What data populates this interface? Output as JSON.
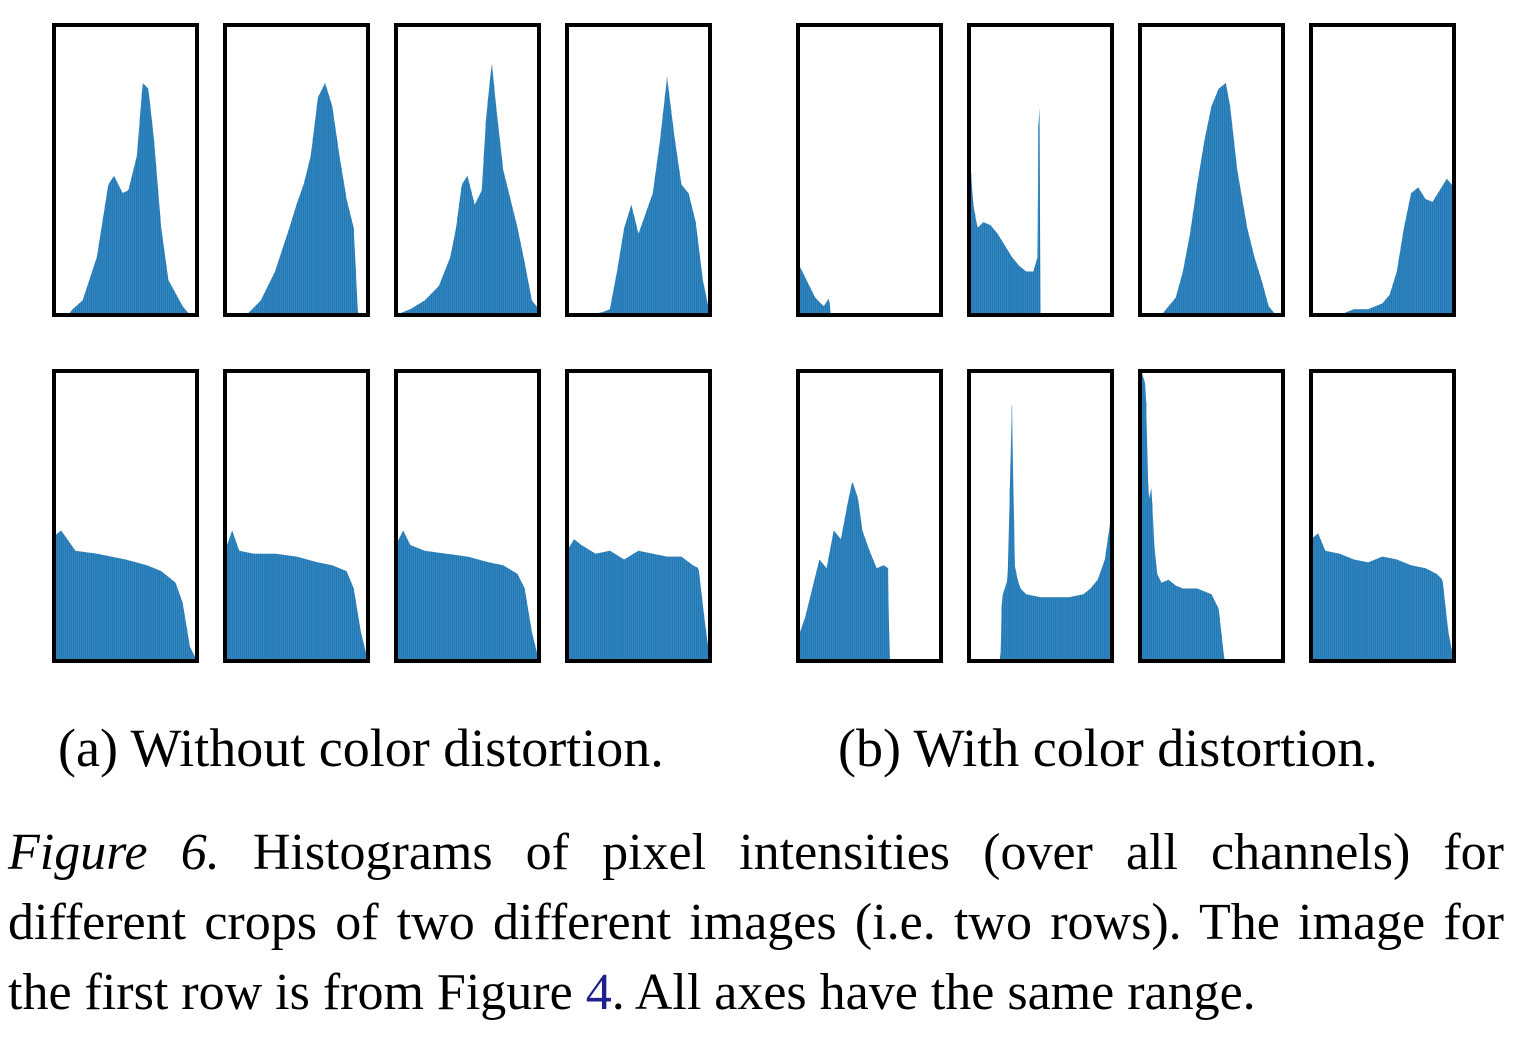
{
  "figure": {
    "label": "Figure 6.",
    "caption_part1": "Histograms of pixel intensities (over all channels) for different crops of two different images (i.e. two rows). The image for the first row is from Figure ",
    "caption_ref": "4",
    "caption_part2": ". All axes have the same range."
  },
  "subcaptions": {
    "a": "(a) Without color distortion.",
    "b": "(b) With color distortion."
  },
  "colors": {
    "bar": "#1f77b4",
    "frame": "#000000"
  },
  "chart_data": [
    {
      "type": "area",
      "panel": "a",
      "shared_axes": true,
      "x_range": [
        0,
        1
      ],
      "y_range": [
        0,
        1
      ],
      "grid": false,
      "histograms": [
        {
          "row": 1,
          "col": 1,
          "x": [
            0,
            0.1,
            0.13,
            0.2,
            0.3,
            0.38,
            0.42,
            0.48,
            0.52,
            0.58,
            0.62,
            0.66,
            0.7,
            0.75,
            0.8,
            0.9,
            0.95,
            1
          ],
          "y": [
            0,
            0,
            0.02,
            0.05,
            0.2,
            0.45,
            0.48,
            0.42,
            0.43,
            0.55,
            0.8,
            0.78,
            0.6,
            0.3,
            0.12,
            0.03,
            0,
            0
          ]
        },
        {
          "row": 1,
          "col": 2,
          "x": [
            0,
            0.15,
            0.25,
            0.35,
            0.45,
            0.5,
            0.55,
            0.6,
            0.65,
            0.7,
            0.75,
            0.8,
            0.85,
            0.9,
            0.93,
            1
          ],
          "y": [
            0,
            0,
            0.05,
            0.15,
            0.3,
            0.38,
            0.45,
            0.55,
            0.75,
            0.8,
            0.72,
            0.55,
            0.4,
            0.3,
            0,
            0
          ]
        },
        {
          "row": 1,
          "col": 3,
          "x": [
            0,
            0.1,
            0.2,
            0.3,
            0.38,
            0.42,
            0.46,
            0.5,
            0.55,
            0.6,
            0.63,
            0.67,
            0.7,
            0.75,
            0.8,
            0.85,
            0.9,
            0.95,
            1
          ],
          "y": [
            0,
            0.02,
            0.05,
            0.1,
            0.2,
            0.3,
            0.45,
            0.48,
            0.38,
            0.43,
            0.68,
            0.87,
            0.72,
            0.5,
            0.4,
            0.3,
            0.18,
            0.05,
            0.02
          ]
        },
        {
          "row": 1,
          "col": 4,
          "x": [
            0,
            0.15,
            0.25,
            0.3,
            0.35,
            0.4,
            0.45,
            0.5,
            0.55,
            0.6,
            0.65,
            0.7,
            0.75,
            0.8,
            0.85,
            0.9,
            0.95,
            1
          ],
          "y": [
            0,
            0,
            0.01,
            0.02,
            0.15,
            0.3,
            0.38,
            0.28,
            0.35,
            0.42,
            0.6,
            0.82,
            0.62,
            0.45,
            0.42,
            0.32,
            0.12,
            0
          ]
        },
        {
          "row": 2,
          "col": 1,
          "x": [
            0,
            0.05,
            0.15,
            0.3,
            0.5,
            0.65,
            0.75,
            0.8,
            0.85,
            0.9,
            0.95,
            1
          ],
          "y": [
            0.43,
            0.45,
            0.38,
            0.37,
            0.35,
            0.33,
            0.31,
            0.29,
            0.27,
            0.2,
            0.05,
            0
          ]
        },
        {
          "row": 2,
          "col": 2,
          "x": [
            0,
            0.05,
            0.1,
            0.2,
            0.35,
            0.5,
            0.65,
            0.75,
            0.85,
            0.9,
            0.95,
            1
          ],
          "y": [
            0.38,
            0.45,
            0.38,
            0.37,
            0.37,
            0.36,
            0.34,
            0.33,
            0.31,
            0.25,
            0.1,
            0
          ]
        },
        {
          "row": 2,
          "col": 3,
          "x": [
            0,
            0.05,
            0.1,
            0.2,
            0.35,
            0.5,
            0.65,
            0.75,
            0.85,
            0.9,
            0.95,
            1
          ],
          "y": [
            0.4,
            0.45,
            0.4,
            0.38,
            0.37,
            0.36,
            0.34,
            0.33,
            0.3,
            0.25,
            0.1,
            0
          ]
        },
        {
          "row": 2,
          "col": 4,
          "x": [
            0,
            0.05,
            0.1,
            0.2,
            0.3,
            0.4,
            0.5,
            0.6,
            0.7,
            0.8,
            0.88,
            0.92,
            0.96,
            1
          ],
          "y": [
            0.38,
            0.42,
            0.4,
            0.37,
            0.38,
            0.35,
            0.38,
            0.37,
            0.36,
            0.36,
            0.33,
            0.32,
            0.15,
            0
          ]
        }
      ]
    },
    {
      "type": "area",
      "panel": "b",
      "shared_axes": true,
      "x_range": [
        0,
        1
      ],
      "y_range": [
        0,
        1
      ],
      "grid": false,
      "histograms": [
        {
          "row": 1,
          "col": 1,
          "x": [
            0,
            0.03,
            0.08,
            0.12,
            0.18,
            0.22,
            0.225,
            0.25,
            1
          ],
          "y": [
            0.18,
            0.15,
            0.1,
            0.06,
            0.03,
            0.06,
            0,
            0,
            0
          ]
        },
        {
          "row": 1,
          "col": 2,
          "x": [
            0,
            0.01,
            0.03,
            0.06,
            0.1,
            0.15,
            0.2,
            0.25,
            0.3,
            0.35,
            0.4,
            0.45,
            0.48,
            0.49,
            0.5,
            0.51,
            1
          ],
          "y": [
            0.1,
            0.52,
            0.38,
            0.3,
            0.32,
            0.31,
            0.28,
            0.24,
            0.2,
            0.17,
            0.15,
            0.15,
            0.2,
            1,
            0,
            0,
            0
          ]
        },
        {
          "row": 1,
          "col": 3,
          "x": [
            0,
            0.15,
            0.2,
            0.25,
            0.3,
            0.35,
            0.4,
            0.45,
            0.5,
            0.55,
            0.6,
            0.63,
            0.68,
            0.75,
            0.8,
            0.85,
            0.9,
            0.95,
            1
          ],
          "y": [
            0,
            0,
            0.03,
            0.06,
            0.15,
            0.28,
            0.45,
            0.6,
            0.72,
            0.78,
            0.8,
            0.72,
            0.5,
            0.3,
            0.2,
            0.12,
            0.03,
            0,
            0
          ]
        },
        {
          "row": 1,
          "col": 4,
          "x": [
            0,
            0.2,
            0.3,
            0.4,
            0.5,
            0.55,
            0.6,
            0.65,
            0.7,
            0.75,
            0.8,
            0.85,
            0.9,
            0.95,
            1
          ],
          "y": [
            0,
            0,
            0.02,
            0.02,
            0.04,
            0.07,
            0.15,
            0.3,
            0.42,
            0.44,
            0.4,
            0.39,
            0.43,
            0.47,
            0.44
          ]
        },
        {
          "row": 2,
          "col": 1,
          "x": [
            0,
            0.05,
            0.1,
            0.15,
            0.2,
            0.25,
            0.3,
            0.35,
            0.38,
            0.42,
            0.45,
            0.5,
            0.55,
            0.6,
            0.63,
            0.64,
            1
          ],
          "y": [
            0.08,
            0.15,
            0.25,
            0.35,
            0.32,
            0.45,
            0.42,
            0.55,
            0.62,
            0.56,
            0.45,
            0.38,
            0.32,
            0.33,
            0.32,
            0,
            0
          ]
        },
        {
          "row": 2,
          "col": 2,
          "x": [
            0,
            0.22,
            0.23,
            0.27,
            0.3,
            0.32,
            0.34,
            0.36,
            0.4,
            0.5,
            0.6,
            0.7,
            0.8,
            0.85,
            0.9,
            0.95,
            1
          ],
          "y": [
            0,
            0,
            0.22,
            0.28,
            0.88,
            0.33,
            0.28,
            0.25,
            0.23,
            0.22,
            0.22,
            0.22,
            0.23,
            0.25,
            0.28,
            0.35,
            0.52
          ]
        },
        {
          "row": 2,
          "col": 3,
          "x": [
            0,
            0.01,
            0.04,
            0.06,
            0.08,
            0.1,
            0.12,
            0.15,
            0.2,
            0.25,
            0.3,
            0.4,
            0.5,
            0.55,
            0.58,
            0.59,
            1
          ],
          "y": [
            0.3,
            1,
            0.95,
            0.55,
            0.6,
            0.4,
            0.3,
            0.27,
            0.28,
            0.26,
            0.25,
            0.25,
            0.23,
            0.18,
            0.05,
            0,
            0
          ]
        },
        {
          "row": 2,
          "col": 4,
          "x": [
            0,
            0.05,
            0.1,
            0.2,
            0.3,
            0.4,
            0.5,
            0.6,
            0.7,
            0.8,
            0.88,
            0.92,
            0.96,
            1
          ],
          "y": [
            0.42,
            0.44,
            0.38,
            0.37,
            0.35,
            0.34,
            0.36,
            0.35,
            0.33,
            0.32,
            0.3,
            0.28,
            0.1,
            0
          ]
        }
      ]
    }
  ]
}
